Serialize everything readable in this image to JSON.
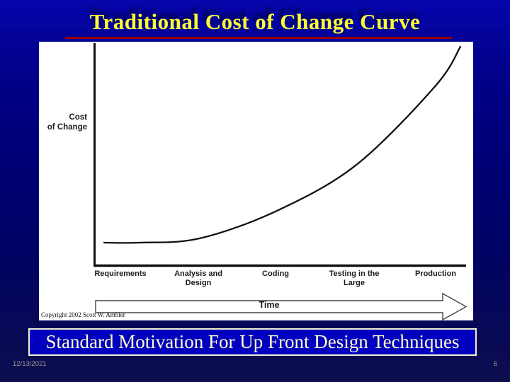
{
  "slide": {
    "title": "Traditional Cost of Change Curve",
    "caption": "Standard Motivation For Up Front Design Techniques",
    "footer_date": "12/13/2021",
    "page_number": "6",
    "colors": {
      "title_text": "#ffff33",
      "title_underline": "#990000",
      "caption_bg": "#0000be",
      "caption_border": "#efefd0",
      "caption_text": "#ffffcc",
      "footer_text": "#a2a28e",
      "background_top": "#0505ac",
      "background_bottom": "#0d0d4e",
      "chart_panel_bg": "#ffffff",
      "curve": "#111111"
    }
  },
  "chart": {
    "y_axis_label_line1": "Cost",
    "y_axis_label_line2": "of Change",
    "time_arrow_label": "Time",
    "copyright": "Copyright 2002 Scott W. Ambler"
  },
  "chart_data": {
    "type": "line",
    "title": "Traditional Cost of Change Curve",
    "xlabel": "Time",
    "ylabel": "Cost of Change",
    "categories": [
      "Requirements",
      "Analysis and\nDesign",
      "Coding",
      "Testing in the\nLarge",
      "Production"
    ],
    "axes_numeric_labels": false,
    "grid": false,
    "legend": "none",
    "ylim": [
      0,
      10
    ],
    "series": [
      {
        "name": "Cost of Change",
        "x_relative": [
          0,
          0.1,
          0.27,
          0.49,
          0.71,
          0.93,
          1.0
        ],
        "values": [
          1.0,
          1.0,
          1.2,
          2.5,
          4.6,
          8.2,
          10.0
        ],
        "shape": "exponential growth, flat near Requirements, steep at Production"
      }
    ],
    "annotations": [
      "Copyright 2002 Scott W. Ambler",
      "Time axis arrow pointing right"
    ]
  }
}
